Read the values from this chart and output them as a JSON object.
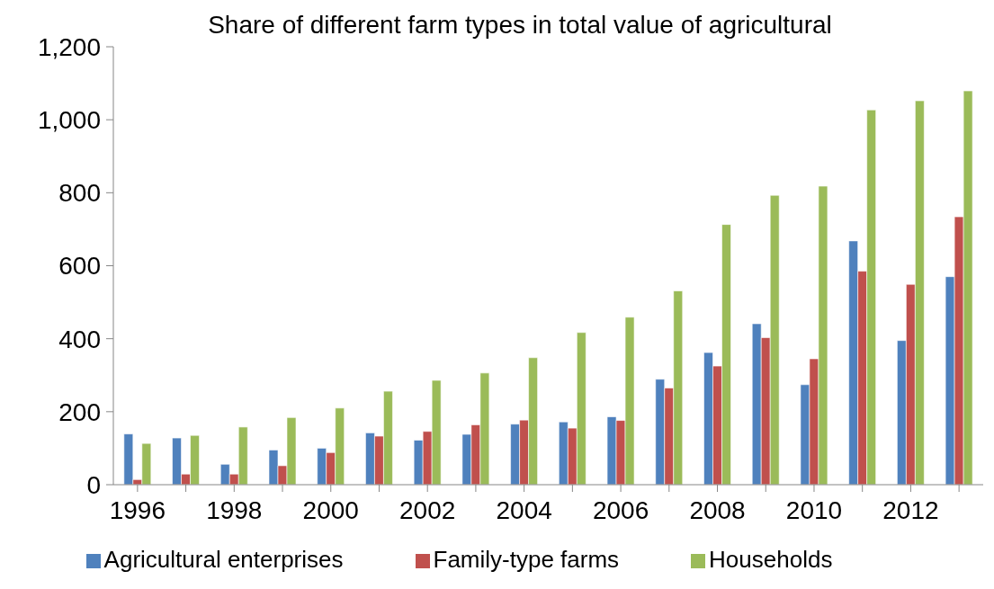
{
  "chart_data": {
    "type": "bar",
    "title": "Share of different farm types in total value of agricultural",
    "categories": [
      "1996",
      null,
      "1998",
      null,
      "2000",
      null,
      "2002",
      null,
      "2004",
      null,
      "2006",
      null,
      "2008",
      null,
      "2010",
      null,
      "2012",
      null
    ],
    "series": [
      {
        "name": "Agricultural enterprises",
        "color": "#4f81bd",
        "values": [
          139,
          128,
          56,
          95,
          100,
          142,
          122,
          138,
          166,
          172,
          186,
          289,
          362,
          441,
          274,
          668,
          395,
          570
        ]
      },
      {
        "name": "Family-type farms",
        "color": "#c0504d",
        "values": [
          14,
          29,
          29,
          52,
          88,
          133,
          146,
          164,
          177,
          155,
          176,
          265,
          325,
          403,
          345,
          585,
          549,
          734
        ]
      },
      {
        "name": "Households",
        "color": "#9bbb59",
        "values": [
          113,
          135,
          158,
          184,
          210,
          256,
          286,
          306,
          348,
          417,
          459,
          531,
          713,
          793,
          818,
          1027,
          1052,
          1079
        ]
      }
    ],
    "ylim": [
      0,
      1200
    ],
    "yticks": [
      0,
      {
        "value": 200,
        "label": "200"
      },
      {
        "value": 400,
        "label": "400"
      },
      {
        "value": 600,
        "label": "600"
      },
      {
        "value": 800,
        "label": "800"
      },
      {
        "value": 1000,
        "label": "1,000"
      },
      {
        "value": 1200,
        "label": "1,200"
      }
    ],
    "grid": false,
    "legend": "bottom"
  }
}
